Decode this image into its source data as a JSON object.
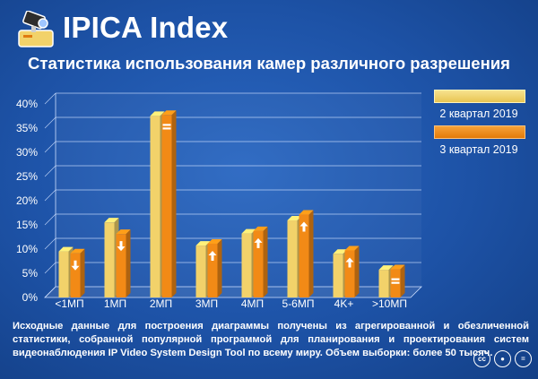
{
  "header": {
    "title": "IPICA Index",
    "subtitle": "Статистика использования камер различного разрешения"
  },
  "chart_data": {
    "type": "bar",
    "categories": [
      "<1МП",
      "1МП",
      "2МП",
      "3МП",
      "4МП",
      "5-6МП",
      "4K+",
      ">10МП"
    ],
    "series": [
      {
        "name": "2 квартал 2019",
        "values": [
          7.3,
          13.3,
          35.3,
          8.5,
          11.0,
          13.7,
          6.8,
          3.5
        ],
        "color": "#f2d26a"
      },
      {
        "name": "3 квартал 2019",
        "values": [
          6.9,
          10.9,
          35.5,
          8.9,
          11.5,
          14.9,
          7.5,
          3.6
        ],
        "color": "#f28a16"
      }
    ],
    "trends": [
      "down",
      "down",
      "equal",
      "up",
      "up",
      "up",
      "up",
      "equal"
    ],
    "yticks": [
      "0%",
      "5%",
      "10%",
      "15%",
      "20%",
      "25%",
      "30%",
      "35%",
      "40%"
    ],
    "ylim": [
      0,
      40
    ],
    "grid": true,
    "legend": "right"
  },
  "footnote": "Исходные данные для построения диаграммы получены из агрегированной и обезличенной статистики, собранной популярной программой для планирования и проектирования систем видеонаблюдения IP Video System Design Tool по всему миру. Объем выборки: более 50 тысяч.",
  "license_icons": [
    "cc-icon",
    "attribution-icon",
    "no-derivatives-icon"
  ]
}
